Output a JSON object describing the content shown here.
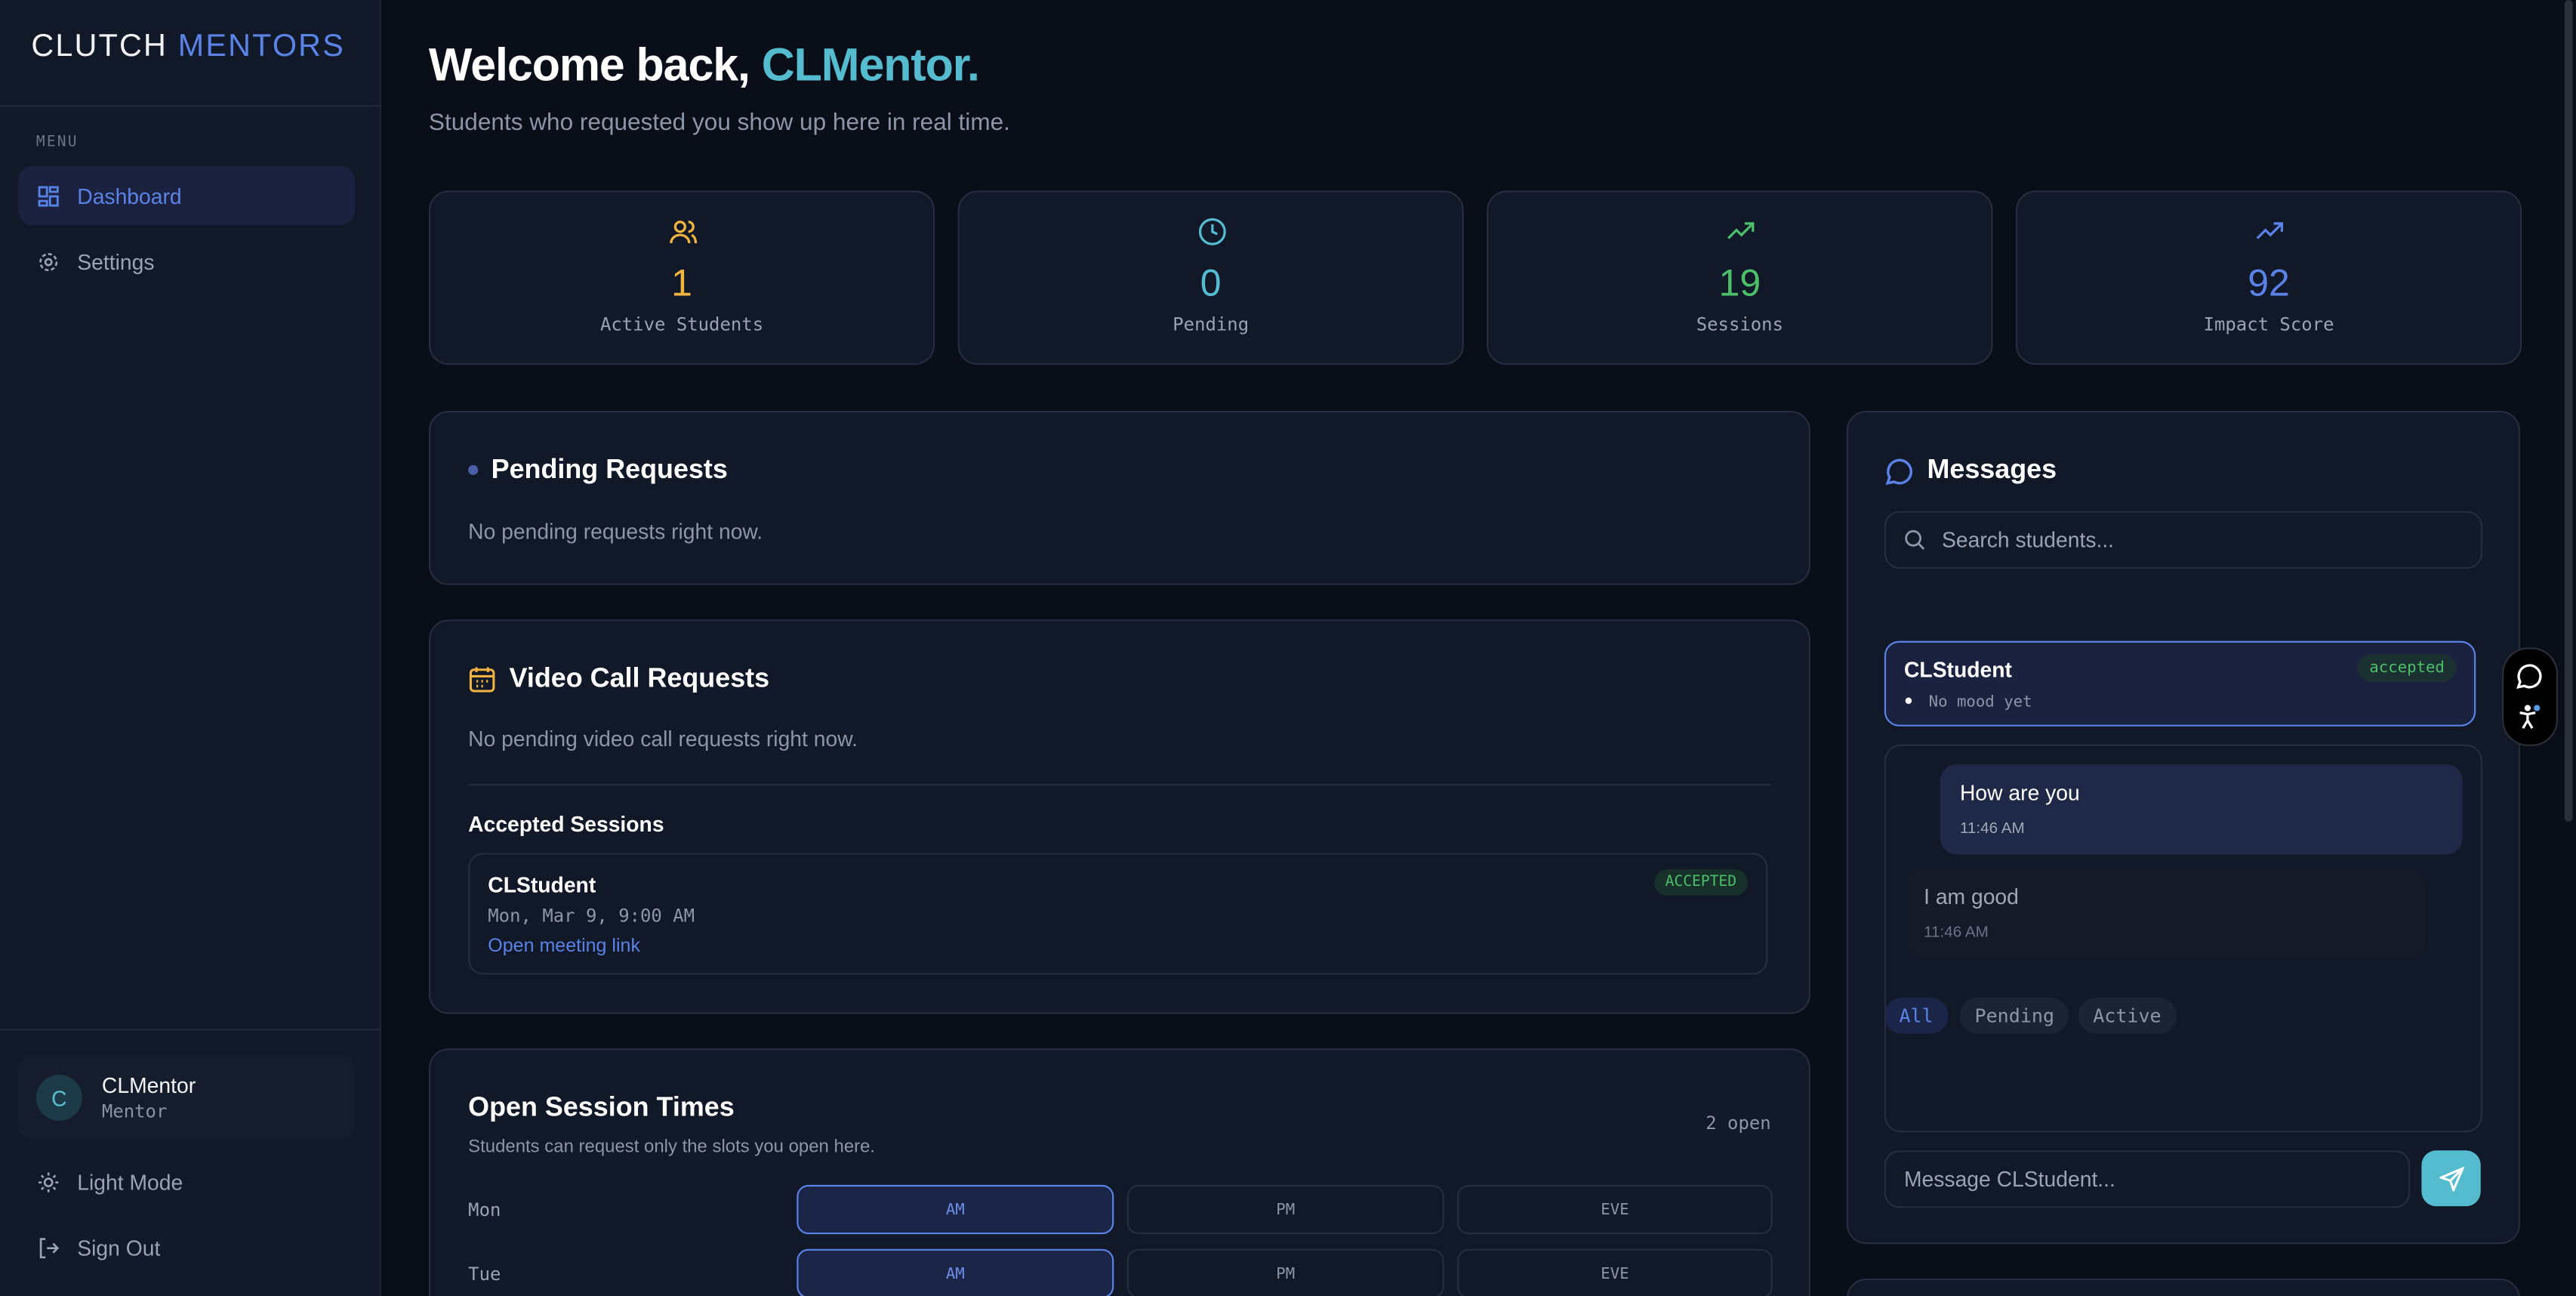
{
  "brand": {
    "first": "CLUTCH",
    "second": "MENTORS"
  },
  "sidebar": {
    "menu_label": "MENU",
    "items": [
      {
        "label": "Dashboard",
        "icon": "grid-icon",
        "active": true
      },
      {
        "label": "Settings",
        "icon": "gear-icon"
      }
    ],
    "user": {
      "initial": "C",
      "name": "CLMentor",
      "role": "Mentor"
    },
    "light_mode": "Light Mode",
    "sign_out": "Sign Out"
  },
  "header": {
    "greeting": "Welcome back, ",
    "name": "CLMentor.",
    "subtitle": "Students who requested you show up here in real time."
  },
  "stats": [
    {
      "value": "1",
      "label": "Active Students",
      "color": "#f2b441",
      "icon": "users-icon"
    },
    {
      "value": "0",
      "label": "Pending",
      "color": "#55bcd0",
      "icon": "clock-icon"
    },
    {
      "value": "19",
      "label": "Sessions",
      "color": "#4cbf6a",
      "icon": "trending-up-icon"
    },
    {
      "value": "92",
      "label": "Impact Score",
      "color": "#5b82e6",
      "icon": "trending-up-icon"
    }
  ],
  "pending": {
    "title": "Pending Requests",
    "empty": "No pending requests right now."
  },
  "video": {
    "title": "Video Call Requests",
    "empty": "No pending video call requests right now.",
    "accepted_title": "Accepted Sessions",
    "sessions": [
      {
        "student": "CLStudent",
        "time": "Mon, Mar 9, 9:00 AM",
        "link": "Open meeting link",
        "status": "ACCEPTED"
      }
    ]
  },
  "open_times": {
    "title": "Open Session Times",
    "subtitle": "Students can request only the slots you open here.",
    "count": "2 open",
    "rows": [
      {
        "day": "Mon",
        "slots": [
          {
            "label": "AM",
            "on": true
          },
          {
            "label": "PM",
            "on": false
          },
          {
            "label": "EVE",
            "on": false
          }
        ]
      },
      {
        "day": "Tue",
        "slots": [
          {
            "label": "AM",
            "on": true
          },
          {
            "label": "PM",
            "on": false
          },
          {
            "label": "EVE",
            "on": false
          }
        ]
      }
    ]
  },
  "messages": {
    "title": "Messages",
    "search_placeholder": "Search students...",
    "filters": [
      "All",
      "Pending",
      "Active"
    ],
    "active_filter": "All",
    "contact": {
      "name": "CLStudent",
      "status": "accepted",
      "mood": "No mood yet"
    },
    "thread": [
      {
        "text": "How are you",
        "time": "11:46 AM",
        "mine": true
      },
      {
        "text": "I am good",
        "time": "11:46 AM",
        "mine": false
      }
    ],
    "input_placeholder": "Message CLStudent..."
  }
}
